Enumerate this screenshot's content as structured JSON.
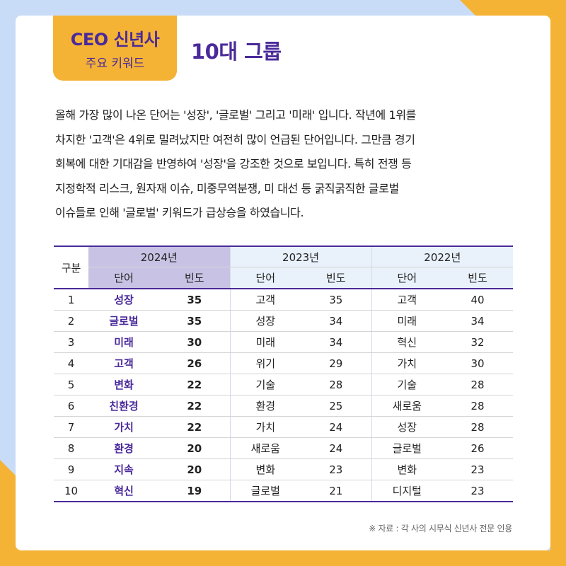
{
  "badge": {
    "line1": "CEO 신년사",
    "line2": "주요 키워드"
  },
  "title": "10대 그룹",
  "paragraph": "올해 가장 많이 나온 단어는 '성장', '글로벌' 그리고 '미래' 입니다. 작년에 1위를\n차지한 '고객'은 4위로 밀려났지만 여전히 많이 언급된 단어입니다. 그만큼 경기\n회복에 대한 기대감을 반영하여 '성장'을 강조한 것으로 보입니다. 특히 전쟁 등\n지정학적 리스크, 원자재 이슈, 미중무역분쟁, 미 대선 등 굵직굵직한 글로벌\n이슈들로 인해 '글로벌' 키워드가 급상승을 하였습니다.",
  "table": {
    "rank_header": "구분",
    "years": [
      "2024년",
      "2023년",
      "2022년"
    ],
    "word_header": "단어",
    "freq_header": "빈도",
    "rows": [
      {
        "rank": "1",
        "w24": "성장",
        "f24": "35",
        "w23": "고객",
        "f23": "35",
        "w22": "고객",
        "f22": "40"
      },
      {
        "rank": "2",
        "w24": "글로벌",
        "f24": "35",
        "w23": "성장",
        "f23": "34",
        "w22": "미래",
        "f22": "34"
      },
      {
        "rank": "3",
        "w24": "미래",
        "f24": "30",
        "w23": "미래",
        "f23": "34",
        "w22": "혁신",
        "f22": "32"
      },
      {
        "rank": "4",
        "w24": "고객",
        "f24": "26",
        "w23": "위기",
        "f23": "29",
        "w22": "가치",
        "f22": "30"
      },
      {
        "rank": "5",
        "w24": "변화",
        "f24": "22",
        "w23": "기술",
        "f23": "28",
        "w22": "기술",
        "f22": "28"
      },
      {
        "rank": "6",
        "w24": "친환경",
        "f24": "22",
        "w23": "환경",
        "f23": "25",
        "w22": "새로움",
        "f22": "28"
      },
      {
        "rank": "7",
        "w24": "가치",
        "f24": "22",
        "w23": "가치",
        "f23": "24",
        "w22": "성장",
        "f22": "28"
      },
      {
        "rank": "8",
        "w24": "환경",
        "f24": "20",
        "w23": "새로움",
        "f23": "24",
        "w22": "글로벌",
        "f22": "26"
      },
      {
        "rank": "9",
        "w24": "지속",
        "f24": "20",
        "w23": "변화",
        "f23": "23",
        "w22": "변화",
        "f22": "23"
      },
      {
        "rank": "10",
        "w24": "혁신",
        "f24": "19",
        "w23": "글로벌",
        "f23": "21",
        "w22": "디지털",
        "f22": "23"
      }
    ]
  },
  "source_note": "※ 자료 : 각 사의 시무식 신년사 전문 인용"
}
